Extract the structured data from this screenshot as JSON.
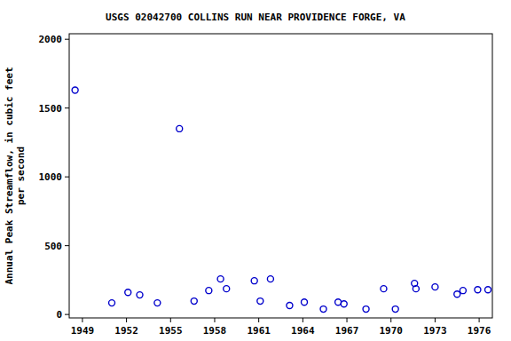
{
  "chart_data": {
    "type": "scatter",
    "title": "USGS 02042700 COLLINS RUN NEAR PROVIDENCE FORGE, VA",
    "y_label": [
      "Annual Peak Streamflow, in cubic feet",
      "per second"
    ],
    "x": [
      1948.5,
      1951.0,
      1952.1,
      1952.9,
      1954.1,
      1955.6,
      1956.6,
      1957.6,
      1958.4,
      1958.8,
      1960.7,
      1961.1,
      1961.8,
      1963.1,
      1964.1,
      1965.4,
      1966.4,
      1966.8,
      1968.3,
      1969.5,
      1970.3,
      1971.6,
      1971.7,
      1973.0,
      1974.5,
      1974.9,
      1975.9,
      1976.6
    ],
    "values": [
      1630,
      84,
      161,
      142,
      84,
      1350,
      97,
      174,
      258,
      187,
      245,
      97,
      258,
      65,
      90,
      39,
      90,
      77,
      39,
      187,
      39,
      226,
      187,
      200,
      148,
      174,
      180,
      180
    ],
    "color": "#0000cc",
    "marker": "circle",
    "xlim": [
      1948.1,
      1976.9
    ],
    "xticks": [
      1949,
      1952,
      1955,
      1958,
      1961,
      1964,
      1967,
      1970,
      1973,
      1976
    ],
    "ylim": [
      -25,
      2040
    ],
    "yticks": [
      0,
      500,
      1000,
      1500,
      2000
    ],
    "grid": false
  }
}
